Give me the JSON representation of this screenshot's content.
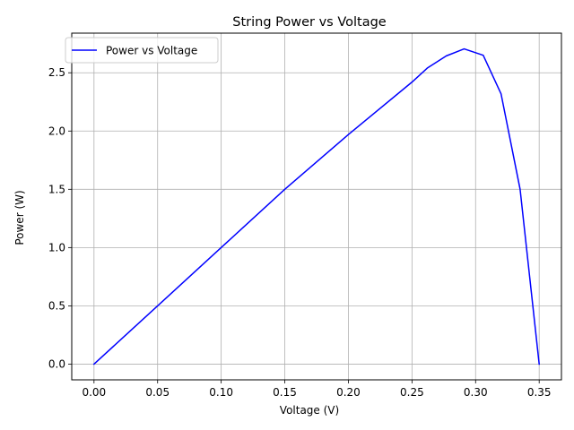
{
  "chart_data": {
    "type": "line",
    "title": "String Power vs Voltage",
    "xlabel": "Voltage (V)",
    "ylabel": "Power (W)",
    "xlim": [
      -0.0175,
      0.3675
    ],
    "ylim": [
      -0.135,
      2.84
    ],
    "xticks": [
      0.0,
      0.05,
      0.1,
      0.15,
      0.2,
      0.25,
      0.3,
      0.35
    ],
    "xtick_labels": [
      "0.00",
      "0.05",
      "0.10",
      "0.15",
      "0.20",
      "0.25",
      "0.30",
      "0.35"
    ],
    "yticks": [
      0.0,
      0.5,
      1.0,
      1.5,
      2.0,
      2.5
    ],
    "ytick_labels": [
      "0.0",
      "0.5",
      "1.0",
      "1.5",
      "2.0",
      "2.5"
    ],
    "grid": true,
    "legend_position": "upper-left",
    "series": [
      {
        "name": "Power vs Voltage",
        "color": "#0000ff",
        "x": [
          0.0,
          0.05,
          0.1,
          0.15,
          0.2,
          0.25,
          0.262,
          0.277,
          0.291,
          0.306,
          0.32,
          0.335,
          0.35
        ],
        "y": [
          0.0,
          0.5,
          1.0,
          1.5,
          1.97,
          2.42,
          2.54,
          2.645,
          2.705,
          2.65,
          2.32,
          1.5,
          0.0
        ]
      }
    ]
  }
}
